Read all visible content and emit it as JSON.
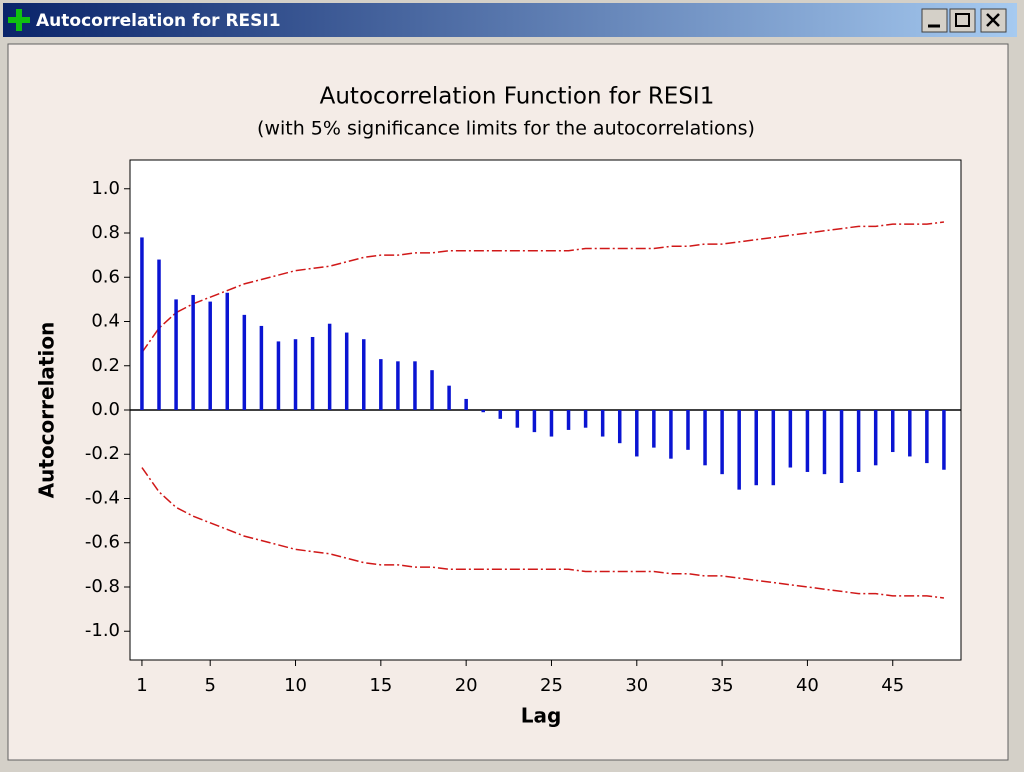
{
  "window": {
    "title": "Autocorrelation for RESI1"
  },
  "chart_data": {
    "type": "bar",
    "title": "Autocorrelation Function for RESI1",
    "subtitle": "(with 5% significance limits for the autocorrelations)",
    "x_label": "Lag",
    "y_label": "Autocorrelation",
    "x": [
      1,
      2,
      3,
      4,
      5,
      6,
      7,
      8,
      9,
      10,
      11,
      12,
      13,
      14,
      15,
      16,
      17,
      18,
      19,
      20,
      21,
      22,
      23,
      24,
      25,
      26,
      27,
      28,
      29,
      30,
      31,
      32,
      33,
      34,
      35,
      36,
      37,
      38,
      39,
      40,
      41,
      42,
      43,
      44,
      45,
      46,
      47,
      48
    ],
    "values": [
      0.78,
      0.68,
      0.5,
      0.52,
      0.49,
      0.53,
      0.43,
      0.38,
      0.31,
      0.32,
      0.33,
      0.39,
      0.35,
      0.32,
      0.23,
      0.22,
      0.22,
      0.18,
      0.11,
      0.05,
      -0.01,
      -0.04,
      -0.08,
      -0.1,
      -0.12,
      -0.09,
      -0.08,
      -0.12,
      -0.15,
      -0.21,
      -0.17,
      -0.22,
      -0.18,
      -0.25,
      -0.29,
      -0.36,
      -0.34,
      -0.34,
      -0.26,
      -0.28,
      -0.29,
      -0.33,
      -0.28,
      -0.25,
      -0.19,
      -0.21,
      -0.24,
      -0.27
    ],
    "color": "#0a14d2",
    "upper_limit": [
      0.26,
      0.37,
      0.44,
      0.48,
      0.51,
      0.54,
      0.57,
      0.59,
      0.61,
      0.63,
      0.64,
      0.65,
      0.67,
      0.69,
      0.7,
      0.7,
      0.71,
      0.71,
      0.72,
      0.72,
      0.72,
      0.72,
      0.72,
      0.72,
      0.72,
      0.72,
      0.73,
      0.73,
      0.73,
      0.73,
      0.73,
      0.74,
      0.74,
      0.75,
      0.75,
      0.76,
      0.77,
      0.78,
      0.79,
      0.8,
      0.81,
      0.82,
      0.83,
      0.83,
      0.84,
      0.84,
      0.84,
      0.85
    ],
    "lower_limit": [
      -0.26,
      -0.37,
      -0.44,
      -0.48,
      -0.51,
      -0.54,
      -0.57,
      -0.59,
      -0.61,
      -0.63,
      -0.64,
      -0.65,
      -0.67,
      -0.69,
      -0.7,
      -0.7,
      -0.71,
      -0.71,
      -0.72,
      -0.72,
      -0.72,
      -0.72,
      -0.72,
      -0.72,
      -0.72,
      -0.72,
      -0.73,
      -0.73,
      -0.73,
      -0.73,
      -0.73,
      -0.74,
      -0.74,
      -0.75,
      -0.75,
      -0.76,
      -0.77,
      -0.78,
      -0.79,
      -0.8,
      -0.81,
      -0.82,
      -0.83,
      -0.83,
      -0.84,
      -0.84,
      -0.84,
      -0.85
    ],
    "limit_color": "#d01818",
    "xlim": [
      0.3,
      49
    ],
    "xticks": [
      1,
      5,
      10,
      15,
      20,
      25,
      30,
      35,
      40,
      45
    ],
    "ylim": [
      -1.13,
      1.13
    ],
    "yticks": [
      {
        "value": -1,
        "label": "-1.0"
      },
      -0.8,
      -0.6,
      -0.4,
      -0.2,
      {
        "value": 0,
        "label": "0.0"
      },
      0.2,
      0.4,
      0.6,
      0.8,
      {
        "value": 1,
        "label": "1.0"
      }
    ]
  }
}
